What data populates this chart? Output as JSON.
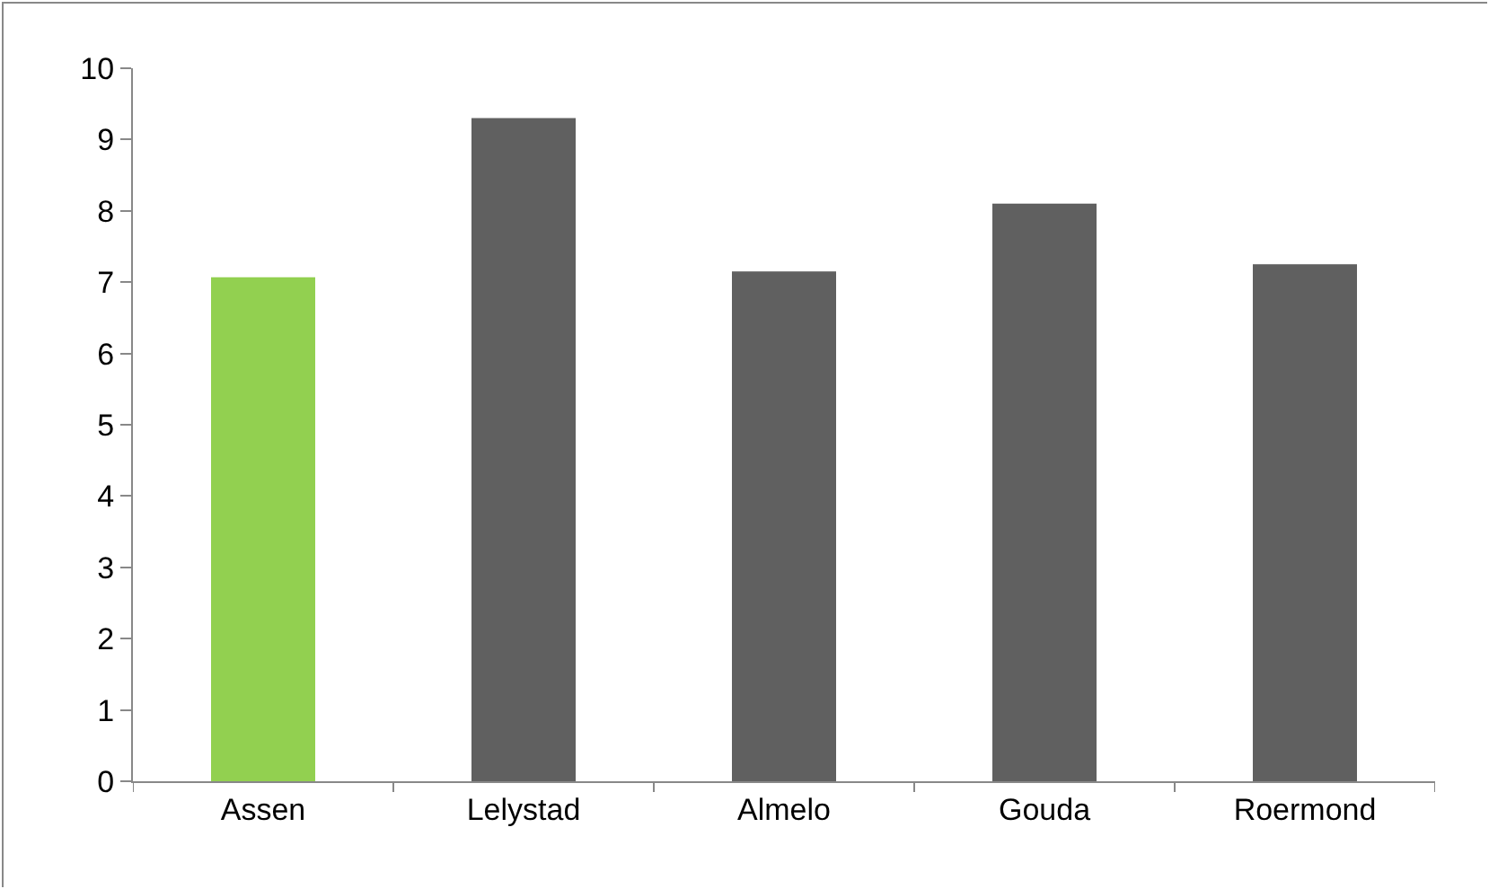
{
  "chart_data": {
    "type": "bar",
    "categories": [
      "Assen",
      "Lelystad",
      "Almelo",
      "Gouda",
      "Roermond"
    ],
    "values": [
      7.07,
      9.3,
      7.15,
      8.1,
      7.25
    ],
    "colors": [
      "#92d050",
      "#606060",
      "#606060",
      "#606060",
      "#606060"
    ],
    "ylim": [
      0,
      10
    ],
    "yticks": [
      0,
      1,
      2,
      3,
      4,
      5,
      6,
      7,
      8,
      9,
      10
    ]
  }
}
